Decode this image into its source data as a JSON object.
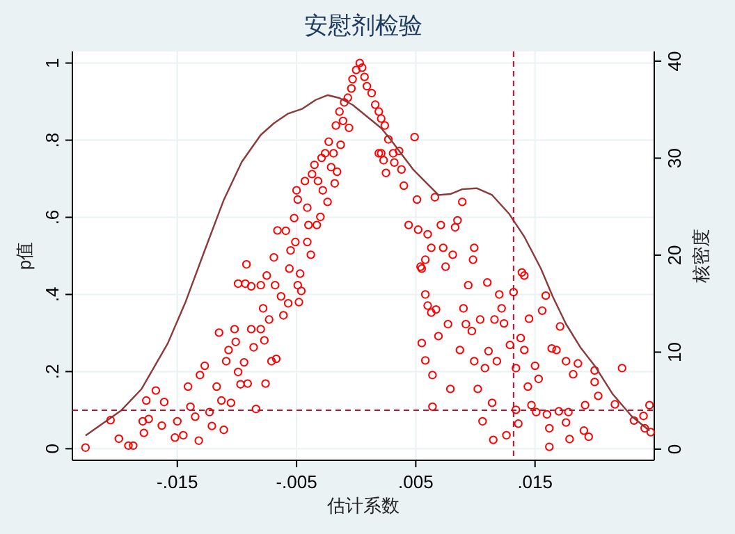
{
  "chart_data": {
    "type": "scatter",
    "title": "安慰剂检验",
    "xlabel": "估计系数",
    "ylabel": "p值",
    "y2label": "核密度",
    "grid": true,
    "xlim": [
      -0.0238,
      0.025
    ],
    "xticks": [
      {
        "value": -0.015,
        "label": "-.015"
      },
      {
        "value": -0.005,
        "label": "-.005"
      },
      {
        "value": 0.005,
        "label": ".005"
      },
      {
        "value": 0.015,
        "label": ".015"
      }
    ],
    "ylim": [
      -0.03,
      1.03
    ],
    "yticks": [
      0,
      {
        "value": 0.2,
        "label": ".2"
      },
      {
        "value": 0.4,
        "label": ".4"
      },
      {
        "value": 0.6,
        "label": ".6"
      },
      {
        "value": 0.8,
        "label": ".8"
      },
      1
    ],
    "y2lim": [
      -1.15,
      41
    ],
    "y2ticks": [
      0,
      10,
      20,
      30,
      40
    ],
    "series": [
      {
        "marker": "circle",
        "color": "#ff0000",
        "x": [
          -0.0227,
          -0.0206,
          -0.0199,
          -0.0191,
          -0.0187,
          -0.0176,
          -0.0168,
          -0.0161,
          -0.0179,
          -0.0174,
          -0.0178,
          -0.0163,
          -0.015,
          -0.0152,
          -0.0145,
          -0.0141,
          -0.0139,
          -0.0135,
          -0.0132,
          -0.0131,
          -0.0127,
          -0.0123,
          -0.0121,
          -0.0117,
          -0.0115,
          -0.0113,
          -0.0111,
          -0.0109,
          -0.0107,
          -0.0105,
          -0.0102,
          -0.0101,
          -0.0099,
          -0.0097,
          -0.0094,
          -0.0092,
          -0.0091,
          -0.0088,
          -0.0086,
          -0.0084,
          -0.0099,
          -0.0093,
          -0.0088,
          -0.008,
          -0.0078,
          -0.0076,
          -0.0073,
          -0.008,
          -0.0077,
          -0.0075,
          -0.0071,
          -0.0069,
          -0.0067,
          -0.0068,
          -0.0066,
          -0.0063,
          -0.0061,
          -0.0059,
          -0.0057,
          -0.0056,
          -0.0055,
          -0.0052,
          -0.0051,
          -0.005,
          -0.0049,
          -0.0049,
          -0.0048,
          -0.0047,
          -0.0046,
          -0.0043,
          -0.0041,
          -0.0041,
          -0.004,
          -0.0038,
          -0.0037,
          -0.0035,
          -0.0033,
          -0.0032,
          -0.003,
          -0.0029,
          -0.0028,
          -0.0026,
          -0.0024,
          -0.0023,
          -0.0021,
          -0.0019,
          -0.0018,
          -0.0017,
          -0.0016,
          -0.0014,
          -0.0013,
          -0.0011,
          -0.001,
          -0.0007,
          -0.0006,
          -0.0004,
          -0.0003,
          0.0,
          0.0003,
          0.0005,
          0.0007,
          0.0009,
          0.0013,
          0.0016,
          0.0019,
          0.0019,
          0.0021,
          0.0024,
          0.0023,
          0.0025,
          0.0027,
          0.0021,
          0.0031,
          0.0032,
          0.0036,
          0.0038,
          0.004,
          0.0049,
          0.0044,
          0.0051,
          0.0052,
          0.0055,
          0.0058,
          0.006,
          0.0063,
          0.0066,
          0.0054,
          0.0055,
          0.0058,
          0.006,
          0.0063,
          0.0064,
          0.0064,
          0.0058,
          0.0067,
          0.0069,
          0.0071,
          0.0073,
          0.0075,
          0.0077,
          0.0079,
          0.0081,
          0.0083,
          0.0085,
          0.0087,
          0.0089,
          0.009,
          0.0092,
          0.0094,
          0.0097,
          0.0098,
          0.0099,
          0.0099,
          0.0102,
          0.0104,
          0.0106,
          0.0108,
          0.011,
          0.0111,
          0.0114,
          0.0115,
          0.0116,
          0.0118,
          0.012,
          0.0122,
          0.0124,
          0.0126,
          0.0129,
          0.0132,
          0.0134,
          0.0134,
          0.0136,
          0.0138,
          0.0139,
          0.0141,
          0.0141,
          0.0144,
          0.0145,
          0.0147,
          0.015,
          0.0151,
          0.0153,
          0.0156,
          0.0159,
          0.016,
          0.0162,
          0.0162,
          0.0164,
          0.0168,
          0.017,
          0.0171,
          0.0176,
          0.0178,
          0.0179,
          0.0176,
          0.0182,
          0.0186,
          0.0192,
          0.0191,
          0.0195,
          0.02,
          0.02,
          0.0203,
          0.0223,
          0.0217,
          0.0233,
          0.0241,
          0.0246,
          0.0242,
          0.0247
        ],
        "values": [
          0.003,
          0.074,
          0.026,
          0.008,
          0.008,
          0.125,
          0.151,
          0.121,
          0.071,
          0.077,
          0.041,
          0.06,
          0.071,
          0.029,
          0.035,
          0.161,
          0.109,
          0.083,
          0.021,
          0.191,
          0.215,
          0.095,
          0.059,
          0.161,
          0.301,
          0.125,
          0.049,
          0.227,
          0.256,
          0.119,
          0.31,
          0.277,
          0.199,
          0.167,
          0.224,
          0.478,
          0.169,
          0.31,
          0.263,
          0.103,
          0.428,
          0.428,
          0.421,
          0.424,
          0.364,
          0.169,
          0.335,
          0.31,
          0.281,
          0.449,
          0.227,
          0.496,
          0.233,
          0.424,
          0.566,
          0.395,
          0.346,
          0.565,
          0.377,
          0.467,
          0.514,
          0.598,
          0.536,
          0.67,
          0.424,
          0.646,
          0.38,
          0.454,
          0.409,
          0.694,
          0.625,
          0.536,
          0.58,
          0.503,
          0.712,
          0.736,
          0.58,
          0.694,
          0.601,
          0.754,
          0.67,
          0.766,
          0.64,
          0.796,
          0.73,
          0.766,
          0.688,
          0.838,
          0.718,
          0.874,
          0.788,
          0.85,
          0.898,
          0.91,
          0.832,
          0.934,
          0.958,
          0.982,
          1.0,
          0.988,
          0.964,
          0.94,
          0.922,
          0.892,
          0.874,
          0.766,
          0.856,
          0.838,
          0.748,
          0.715,
          0.802,
          0.766,
          0.766,
          0.742,
          0.772,
          0.724,
          0.682,
          0.808,
          0.58,
          0.646,
          0.568,
          0.467,
          0.49,
          0.556,
          0.521,
          0.652,
          0.472,
          0.274,
          0.4,
          0.371,
          0.353,
          0.191,
          0.109,
          0.229,
          0.361,
          0.292,
          0.58,
          0.521,
          0.472,
          0.323,
          0.155,
          0.503,
          0.574,
          0.592,
          0.256,
          0.64,
          0.364,
          0.323,
          0.424,
          0.305,
          0.49,
          0.227,
          0.521,
          0.155,
          0.335,
          0.071,
          0.209,
          0.431,
          0.253,
          0.119,
          0.023,
          0.335,
          0.227,
          0.4,
          0.364,
          0.325,
          0.035,
          0.269,
          0.406,
          0.209,
          0.101,
          0.065,
          0.287,
          0.457,
          0.449,
          0.256,
          0.161,
          0.337,
          0.113,
          0.215,
          0.095,
          0.181,
          0.358,
          0.397,
          0.089,
          0.053,
          0.005,
          0.26,
          0.256,
          0.097,
          0.317,
          0.068,
          0.095,
          0.025,
          0.227,
          0.193,
          0.221,
          0.113,
          0.047,
          0.031,
          0.203,
          0.173,
          0.137,
          0.209,
          0.115,
          0.073,
          0.085,
          0.113,
          0.053,
          0.043
        ]
      },
      {
        "type": "line",
        "axis": "y2",
        "marker": "none",
        "color": "#8b3a3a",
        "x": [
          -0.0227,
          -0.0197,
          -0.018,
          -0.0158,
          -0.0143,
          -0.0127,
          -0.0111,
          -0.0096,
          -0.008,
          -0.0069,
          -0.0057,
          -0.0045,
          -0.0034,
          -0.0024,
          -0.0014,
          -0.0003,
          0.0009,
          0.0021,
          0.0029,
          0.0048,
          0.0069,
          0.0079,
          0.0089,
          0.0101,
          0.0114,
          0.0128,
          0.0141,
          0.0155,
          0.0165,
          0.0176,
          0.0188,
          0.02,
          0.0215,
          0.0231,
          0.0246
        ],
        "values": [
          1.4,
          4.0,
          6.2,
          10.9,
          15.2,
          20.5,
          25.7,
          29.6,
          32.4,
          33.6,
          34.6,
          35.1,
          36.0,
          36.5,
          36.2,
          35.5,
          34.3,
          33.1,
          31.9,
          28.8,
          26.2,
          26.3,
          26.8,
          26.9,
          26.2,
          24.3,
          21.9,
          18.6,
          15.7,
          12.9,
          10.5,
          8.6,
          5.7,
          3.4,
          1.9
        ]
      }
    ],
    "ref_lines": [
      {
        "axis": "y",
        "value": 0.1,
        "color": "#c0102e",
        "line_style": "dashed"
      },
      {
        "axis": "x",
        "value": 0.0132,
        "color": "#c0102e",
        "line_style": "dashed"
      }
    ]
  }
}
